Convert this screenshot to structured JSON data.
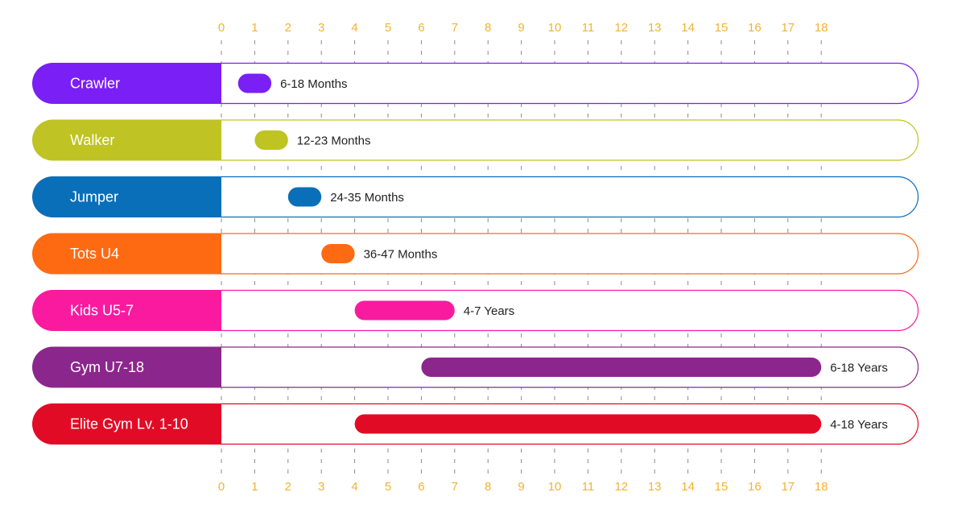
{
  "chart_data": {
    "type": "bar",
    "orientation": "horizontal",
    "x_ticks": [
      0,
      1,
      2,
      3,
      4,
      5,
      6,
      7,
      8,
      9,
      10,
      11,
      12,
      13,
      14,
      15,
      16,
      17,
      18
    ],
    "xlim": [
      0,
      18
    ],
    "grid": "dashed-vertical",
    "rows": [
      {
        "name": "Crawler",
        "start": 0.5,
        "end": 1.5,
        "range_label": "6-18 Months",
        "color": "#7a1ff5"
      },
      {
        "name": "Walker",
        "start": 1.0,
        "end": 2.0,
        "range_label": "12-23 Months",
        "color": "#bfc323"
      },
      {
        "name": "Jumper",
        "start": 2.0,
        "end": 3.0,
        "range_label": "24-35 Months",
        "color": "#0a6fb9"
      },
      {
        "name": "Tots U4",
        "start": 3.0,
        "end": 4.0,
        "range_label": "36-47 Months",
        "color": "#fe6a12"
      },
      {
        "name": "Kids U5-7",
        "start": 4.0,
        "end": 7.0,
        "range_label": "4-7 Years",
        "color": "#fa1aa0"
      },
      {
        "name": "Gym U7-18",
        "start": 6.0,
        "end": 18.0,
        "range_label": "6-18 Years",
        "color": "#8b278c"
      },
      {
        "name": "Elite Gym Lv. 1-10",
        "start": 4.0,
        "end": 18.0,
        "range_label": "4-18 Years",
        "color": "#e20b26"
      }
    ]
  }
}
